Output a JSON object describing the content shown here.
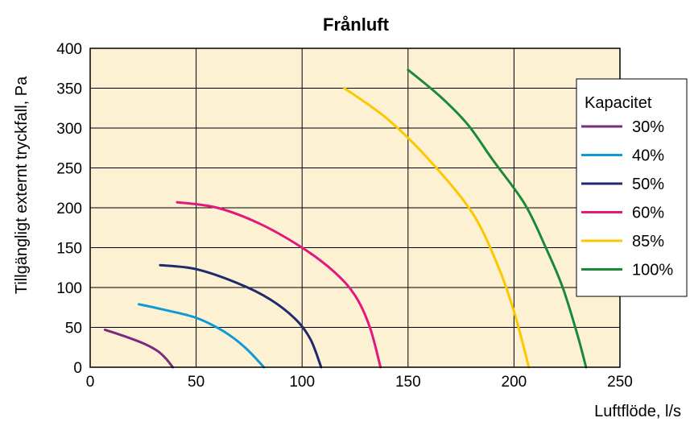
{
  "chart_data": {
    "type": "line",
    "title": "Frånluft",
    "xlabel": "Luftflöde, l/s",
    "ylabel": "Tillgängligt externt tryckfall, Pa",
    "xlim": [
      0,
      250
    ],
    "ylim": [
      0,
      400
    ],
    "xticks": [
      "0",
      "50",
      "100",
      "150",
      "200",
      "250"
    ],
    "yticks": [
      "0",
      "50",
      "100",
      "150",
      "200",
      "250",
      "300",
      "350",
      "400"
    ],
    "grid": true,
    "plot_background": "#fdf1d4",
    "legend": {
      "title": "Kapacitet",
      "position": "right"
    },
    "series": [
      {
        "name": "30%",
        "color": "#7b2a7f",
        "points": [
          [
            7,
            47
          ],
          [
            15,
            40
          ],
          [
            25,
            30
          ],
          [
            32,
            20
          ],
          [
            36,
            10
          ],
          [
            39,
            0
          ]
        ]
      },
      {
        "name": "40%",
        "color": "#0e9ad7",
        "points": [
          [
            23,
            79
          ],
          [
            35,
            72
          ],
          [
            50,
            62
          ],
          [
            63,
            45
          ],
          [
            73,
            25
          ],
          [
            82,
            0
          ]
        ]
      },
      {
        "name": "50%",
        "color": "#1f2a6e",
        "points": [
          [
            33,
            128
          ],
          [
            50,
            123
          ],
          [
            70,
            105
          ],
          [
            85,
            85
          ],
          [
            97,
            60
          ],
          [
            104,
            35
          ],
          [
            109,
            0
          ]
        ]
      },
      {
        "name": "60%",
        "color": "#e2187a",
        "points": [
          [
            41,
            207
          ],
          [
            60,
            200
          ],
          [
            80,
            180
          ],
          [
            100,
            150
          ],
          [
            115,
            120
          ],
          [
            125,
            90
          ],
          [
            132,
            50
          ],
          [
            137,
            0
          ]
        ]
      },
      {
        "name": "85%",
        "color": "#fdc700",
        "points": [
          [
            120,
            350
          ],
          [
            140,
            312
          ],
          [
            160,
            260
          ],
          [
            180,
            195
          ],
          [
            192,
            130
          ],
          [
            200,
            70
          ],
          [
            207,
            0
          ]
        ]
      },
      {
        "name": "100%",
        "color": "#1a8a3a",
        "points": [
          [
            150,
            373
          ],
          [
            165,
            340
          ],
          [
            178,
            305
          ],
          [
            190,
            260
          ],
          [
            205,
            205
          ],
          [
            215,
            150
          ],
          [
            223,
            100
          ],
          [
            230,
            40
          ],
          [
            234,
            0
          ]
        ]
      }
    ]
  }
}
